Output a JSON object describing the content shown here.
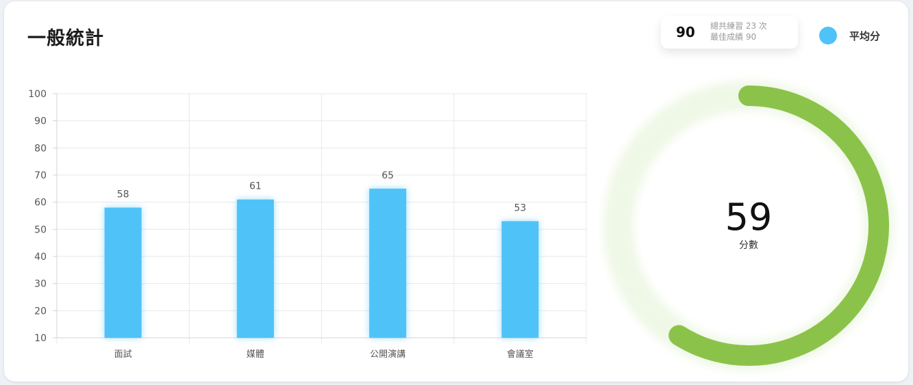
{
  "card": {
    "title": "一般統計"
  },
  "stats": {
    "best_value": "90",
    "total_practice": "總共練習 23 次",
    "best_score": "最佳成績 90"
  },
  "legend": {
    "label": "平均分",
    "color": "#4fc3f7"
  },
  "chart_data": {
    "type": "bar",
    "categories": [
      "面試",
      "媒體",
      "公開演講",
      "會議室"
    ],
    "values": [
      58,
      61,
      65,
      53
    ],
    "ylim": [
      10,
      100
    ],
    "yticks": [
      10,
      20,
      30,
      40,
      50,
      60,
      70,
      80,
      90,
      100
    ],
    "grid": true,
    "bar_color": "#4fc3f7"
  },
  "gauge": {
    "value": "59",
    "label": "分數",
    "fraction": 0.59,
    "color": "#8bc34a"
  }
}
